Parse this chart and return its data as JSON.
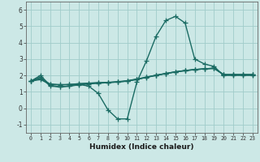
{
  "xlabel": "Humidex (Indice chaleur)",
  "xlim": [
    -0.5,
    23.5
  ],
  "ylim": [
    -1.5,
    6.5
  ],
  "yticks": [
    -1,
    0,
    1,
    2,
    3,
    4,
    5,
    6
  ],
  "xticks": [
    0,
    1,
    2,
    3,
    4,
    5,
    6,
    7,
    8,
    9,
    10,
    11,
    12,
    13,
    14,
    15,
    16,
    17,
    18,
    19,
    20,
    21,
    22,
    23
  ],
  "background_color": "#cce8e6",
  "grid_color": "#a0ccca",
  "line_color": "#1a6b63",
  "line_width": 1.0,
  "marker": "+",
  "marker_size": 4,
  "marker_edge_width": 0.9,
  "series": [
    [
      1.65,
      2.0,
      1.4,
      1.3,
      1.35,
      1.45,
      1.35,
      0.9,
      -0.1,
      -0.65,
      -0.65,
      1.6,
      2.9,
      4.4,
      5.35,
      5.6,
      5.2,
      3.0,
      2.7,
      2.55,
      2.0,
      2.0,
      2.0,
      2.0
    ],
    [
      1.65,
      1.9,
      1.35,
      1.3,
      1.35,
      1.42,
      1.48,
      1.52,
      1.56,
      1.6,
      1.65,
      1.75,
      1.88,
      2.0,
      2.12,
      2.22,
      2.3,
      2.36,
      2.4,
      2.44,
      2.05,
      2.05,
      2.05,
      2.05
    ],
    [
      1.65,
      1.82,
      1.48,
      1.44,
      1.45,
      1.5,
      1.53,
      1.56,
      1.58,
      1.62,
      1.68,
      1.78,
      1.9,
      2.02,
      2.12,
      2.22,
      2.3,
      2.36,
      2.4,
      2.44,
      2.05,
      2.05,
      2.05,
      2.05
    ],
    [
      1.65,
      1.75,
      1.45,
      1.42,
      1.44,
      1.48,
      1.52,
      1.55,
      1.57,
      1.6,
      1.66,
      1.77,
      1.89,
      2.01,
      2.11,
      2.21,
      2.29,
      2.35,
      2.4,
      2.43,
      2.04,
      2.04,
      2.04,
      2.04
    ]
  ],
  "xlabel_fontsize": 6.5,
  "xlabel_fontweight": "bold",
  "xtick_fontsize": 4.8,
  "ytick_fontsize": 5.5
}
